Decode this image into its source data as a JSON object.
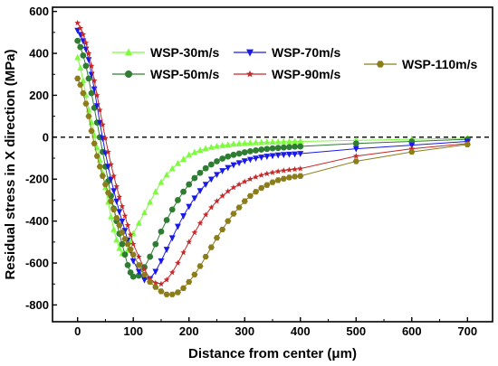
{
  "chart_data": {
    "type": "line",
    "xlabel": "Distance from center (μm)",
    "ylabel": "Residual stress in X direction (MPa)",
    "xlim": [
      -45,
      745
    ],
    "ylim": [
      -880,
      620
    ],
    "x_ticks": [
      0,
      100,
      200,
      300,
      400,
      500,
      600,
      700
    ],
    "y_ticks": [
      600,
      400,
      200,
      0,
      -200,
      -400,
      -600,
      -800
    ],
    "grid": false,
    "reference_line": {
      "y": 0,
      "style": "dashed"
    },
    "series": [
      {
        "name": "WSP-30m/s",
        "color": "#7CFC3C",
        "marker": "triangle-up",
        "x": [
          0,
          5,
          10,
          15,
          20,
          25,
          30,
          35,
          40,
          45,
          50,
          55,
          60,
          65,
          70,
          75,
          80,
          85,
          90,
          95,
          100,
          110,
          120,
          130,
          140,
          150,
          160,
          170,
          180,
          190,
          200,
          210,
          220,
          230,
          240,
          250,
          260,
          270,
          280,
          290,
          300,
          310,
          320,
          330,
          340,
          350,
          360,
          370,
          380,
          390,
          400,
          500,
          600,
          700
        ],
        "y": [
          380,
          330,
          270,
          200,
          130,
          70,
          10,
          -50,
          -110,
          -170,
          -240,
          -310,
          -380,
          -440,
          -490,
          -530,
          -555,
          -555,
          -540,
          -500,
          -460,
          -410,
          -360,
          -310,
          -260,
          -215,
          -180,
          -150,
          -125,
          -105,
          -85,
          -72,
          -62,
          -54,
          -48,
          -43,
          -39,
          -36,
          -33,
          -31,
          -29,
          -27,
          -26,
          -25,
          -24,
          -23,
          -22,
          -21,
          -21,
          -20,
          -20,
          -15,
          -10,
          -5
        ]
      },
      {
        "name": "WSP-50m/s",
        "color": "#2E7D32",
        "marker": "circle",
        "x": [
          0,
          5,
          10,
          15,
          20,
          25,
          30,
          35,
          40,
          45,
          50,
          55,
          60,
          65,
          70,
          75,
          80,
          85,
          90,
          95,
          100,
          110,
          120,
          130,
          140,
          150,
          160,
          170,
          180,
          190,
          200,
          210,
          220,
          230,
          240,
          250,
          260,
          270,
          280,
          290,
          300,
          310,
          320,
          330,
          340,
          350,
          360,
          370,
          380,
          390,
          400,
          500,
          600,
          700
        ],
        "y": [
          460,
          430,
          390,
          340,
          280,
          210,
          140,
          70,
          0,
          -70,
          -140,
          -210,
          -280,
          -340,
          -400,
          -460,
          -510,
          -560,
          -610,
          -645,
          -665,
          -660,
          -620,
          -570,
          -510,
          -450,
          -395,
          -345,
          -300,
          -260,
          -225,
          -195,
          -170,
          -148,
          -130,
          -115,
          -102,
          -92,
          -84,
          -78,
          -72,
          -67,
          -63,
          -59,
          -56,
          -53,
          -51,
          -49,
          -47,
          -45,
          -44,
          -30,
          -20,
          -10
        ]
      },
      {
        "name": "WSP-70m/s",
        "color": "#1A1AE6",
        "marker": "triangle-down",
        "x": [
          0,
          5,
          10,
          15,
          20,
          25,
          30,
          35,
          40,
          45,
          50,
          55,
          60,
          65,
          70,
          75,
          80,
          85,
          90,
          95,
          100,
          110,
          120,
          130,
          140,
          150,
          160,
          170,
          180,
          190,
          200,
          210,
          220,
          230,
          240,
          250,
          260,
          270,
          280,
          290,
          300,
          310,
          320,
          330,
          340,
          350,
          360,
          370,
          380,
          390,
          400,
          500,
          600,
          700
        ],
        "y": [
          510,
          490,
          460,
          420,
          370,
          300,
          230,
          150,
          70,
          -5,
          -75,
          -140,
          -200,
          -255,
          -305,
          -355,
          -400,
          -445,
          -490,
          -540,
          -590,
          -640,
          -680,
          -675,
          -640,
          -590,
          -535,
          -480,
          -425,
          -375,
          -330,
          -290,
          -255,
          -225,
          -200,
          -178,
          -160,
          -145,
          -132,
          -122,
          -113,
          -106,
          -100,
          -95,
          -91,
          -88,
          -85,
          -83,
          -81,
          -80,
          -78,
          -55,
          -38,
          -20
        ]
      },
      {
        "name": "WSP-90m/s",
        "color": "#C62828",
        "marker": "star",
        "x": [
          0,
          5,
          10,
          15,
          20,
          25,
          30,
          35,
          40,
          45,
          50,
          55,
          60,
          65,
          70,
          75,
          80,
          85,
          90,
          95,
          100,
          110,
          120,
          130,
          140,
          150,
          160,
          170,
          180,
          190,
          200,
          210,
          220,
          230,
          240,
          250,
          260,
          270,
          280,
          290,
          300,
          310,
          320,
          330,
          340,
          350,
          360,
          370,
          380,
          390,
          400,
          500,
          600,
          700
        ],
        "y": [
          545,
          520,
          490,
          450,
          400,
          340,
          270,
          200,
          130,
          60,
          -5,
          -70,
          -130,
          -185,
          -235,
          -285,
          -330,
          -375,
          -420,
          -465,
          -510,
          -570,
          -630,
          -675,
          -695,
          -700,
          -680,
          -645,
          -600,
          -550,
          -500,
          -455,
          -410,
          -370,
          -335,
          -305,
          -280,
          -258,
          -240,
          -225,
          -212,
          -200,
          -190,
          -181,
          -174,
          -168,
          -163,
          -159,
          -156,
          -153,
          -150,
          -90,
          -55,
          -30
        ]
      },
      {
        "name": "WSP-110m/s",
        "color": "#8B7D1A",
        "marker": "hexagon",
        "x": [
          0,
          5,
          10,
          15,
          20,
          25,
          30,
          35,
          40,
          45,
          50,
          55,
          60,
          65,
          70,
          75,
          80,
          85,
          90,
          95,
          100,
          110,
          120,
          130,
          140,
          150,
          160,
          170,
          180,
          190,
          200,
          210,
          220,
          230,
          240,
          250,
          260,
          270,
          280,
          290,
          300,
          310,
          320,
          330,
          340,
          350,
          360,
          370,
          380,
          390,
          400,
          500,
          600,
          700
        ],
        "y": [
          280,
          250,
          210,
          160,
          100,
          30,
          -30,
          -90,
          -140,
          -185,
          -225,
          -265,
          -305,
          -345,
          -385,
          -420,
          -455,
          -485,
          -510,
          -535,
          -560,
          -610,
          -655,
          -690,
          -715,
          -735,
          -750,
          -750,
          -740,
          -720,
          -690,
          -655,
          -615,
          -570,
          -525,
          -480,
          -440,
          -400,
          -365,
          -335,
          -305,
          -280,
          -260,
          -242,
          -228,
          -215,
          -205,
          -198,
          -192,
          -188,
          -185,
          -115,
          -70,
          -35
        ]
      }
    ],
    "legend": [
      {
        "name": "WSP-30m/s",
        "placement": "top",
        "column": 1,
        "row": 1
      },
      {
        "name": "WSP-70m/s",
        "placement": "top",
        "column": 2,
        "row": 1
      },
      {
        "name": "WSP-50m/s",
        "placement": "top",
        "column": 1,
        "row": 2
      },
      {
        "name": "WSP-90m/s",
        "placement": "top",
        "column": 2,
        "row": 2
      },
      {
        "name": "WSP-110m/s",
        "placement": "top-right",
        "column": 3,
        "row": 1
      }
    ]
  }
}
